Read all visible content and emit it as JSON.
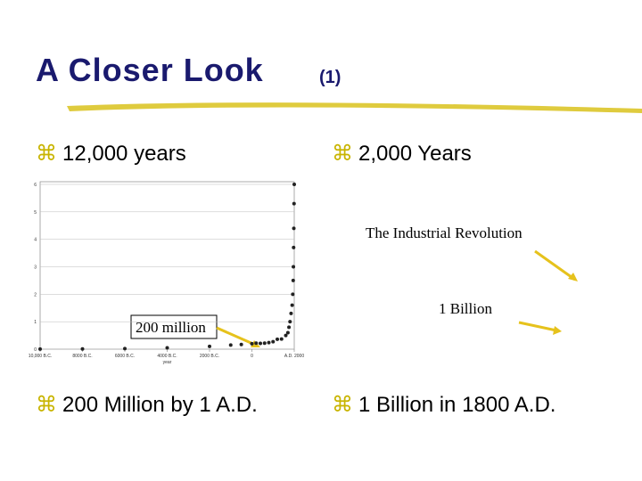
{
  "title": "A Closer Look",
  "title_suffix": "(1)",
  "bullets": [
    "12,000 years",
    "2,000 Years",
    "200 Million by 1 A.D.",
    "1 Billion in 1800 A.D."
  ],
  "annotations": {
    "industrial": "The Industrial Revolution",
    "billion": "1 Billion",
    "million": "200 million"
  },
  "figure": {
    "type": "scatter",
    "x_label": "year",
    "x": [
      -10000,
      -8000,
      -6000,
      -4000,
      -2000,
      -1000,
      -500,
      0,
      200,
      400,
      600,
      800,
      1000,
      1200,
      1400,
      1600,
      1700,
      1750,
      1800,
      1850,
      1900,
      1930,
      1950,
      1960,
      1970,
      1980,
      1990,
      2000
    ],
    "values": [
      0.005,
      0.01,
      0.02,
      0.05,
      0.1,
      0.15,
      0.17,
      0.2,
      0.22,
      0.21,
      0.22,
      0.24,
      0.27,
      0.36,
      0.37,
      0.5,
      0.6,
      0.8,
      1,
      1.3,
      1.6,
      2,
      2.5,
      3,
      3.7,
      4.4,
      5.3,
      6
    ],
    "xlim": [
      -10000,
      2000
    ],
    "xticks": [
      {
        "value": -10000,
        "label": "10,000 B.C."
      },
      {
        "value": -8000,
        "label": "8000 B.C."
      },
      {
        "value": -6000,
        "label": "6000 B.C."
      },
      {
        "value": -4000,
        "label": "4000 B.C."
      },
      {
        "value": -2000,
        "label": "2000 B.C."
      },
      0,
      {
        "value": 2000,
        "label": "A.D. 2000"
      }
    ],
    "ylim": [
      0,
      6
    ],
    "yticks": [
      0,
      1,
      2,
      3,
      4,
      5,
      6
    ],
    "color": "#222222"
  }
}
